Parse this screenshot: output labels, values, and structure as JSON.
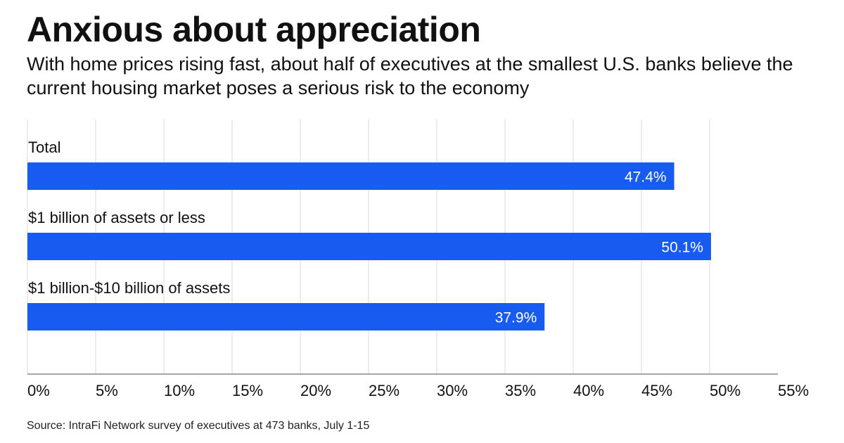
{
  "header": {
    "title": "Anxious about appreciation",
    "subtitle": "With home prices rising fast, about half of executives at the smallest U.S. banks believe the current housing market poses a serious risk to the economy"
  },
  "footer": {
    "source": "Source: IntraFi Network survey of executives at 473 banks, July 1-15"
  },
  "colors": {
    "bar": "#185bf0",
    "grid": "#e0e0e0",
    "axis": "#888888",
    "bar_label": "#ffffff",
    "text": "#111111"
  },
  "chart_data": {
    "type": "bar",
    "orientation": "horizontal",
    "title": "Anxious about appreciation",
    "subtitle": "With home prices rising fast, about half of executives at the smallest U.S. banks believe the current housing market poses a serious risk to the economy",
    "categories": [
      "Total",
      "$1 billion of assets or less",
      "$1 billion-$10 billion of assets"
    ],
    "values": [
      47.4,
      50.1,
      37.9
    ],
    "value_labels": [
      "47.4%",
      "50.1%",
      "37.9%"
    ],
    "xlabel": "",
    "ylabel": "",
    "xlim": [
      0,
      55
    ],
    "xticks": [
      0,
      5,
      10,
      15,
      20,
      25,
      30,
      35,
      40,
      45,
      50,
      55
    ],
    "xtick_labels": [
      "0%",
      "5%",
      "10%",
      "15%",
      "20%",
      "25%",
      "30%",
      "35%",
      "40%",
      "45%",
      "50%",
      "55%"
    ],
    "grid": "vertical",
    "legend": "none",
    "source": "Source: IntraFi Network survey of executives at 473 banks, July 1-15"
  }
}
